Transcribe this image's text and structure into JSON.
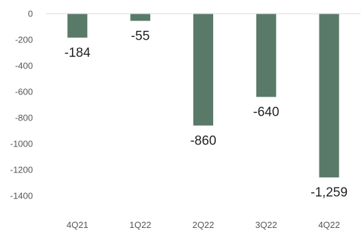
{
  "chart_data": {
    "type": "bar",
    "categories": [
      "4Q21",
      "1Q22",
      "2Q22",
      "3Q22",
      "4Q22"
    ],
    "values": [
      -184,
      -55,
      -860,
      -640,
      -1259
    ],
    "data_labels": [
      "-184",
      "-55",
      "-860",
      "-640",
      "-1,259"
    ],
    "title": "",
    "xlabel": "",
    "ylabel": "",
    "ylim": [
      -1400,
      0
    ],
    "yticks": [
      0,
      -200,
      -400,
      -600,
      -800,
      -1000,
      -1200,
      -1400
    ],
    "ytick_labels": [
      "0",
      "-200",
      "-400",
      "-600",
      "-800",
      "-1000",
      "-1200",
      "-1400"
    ],
    "grid": false,
    "legend": "none",
    "bar_color": "#5a7a69",
    "axis_color": "#d9d9d9"
  }
}
